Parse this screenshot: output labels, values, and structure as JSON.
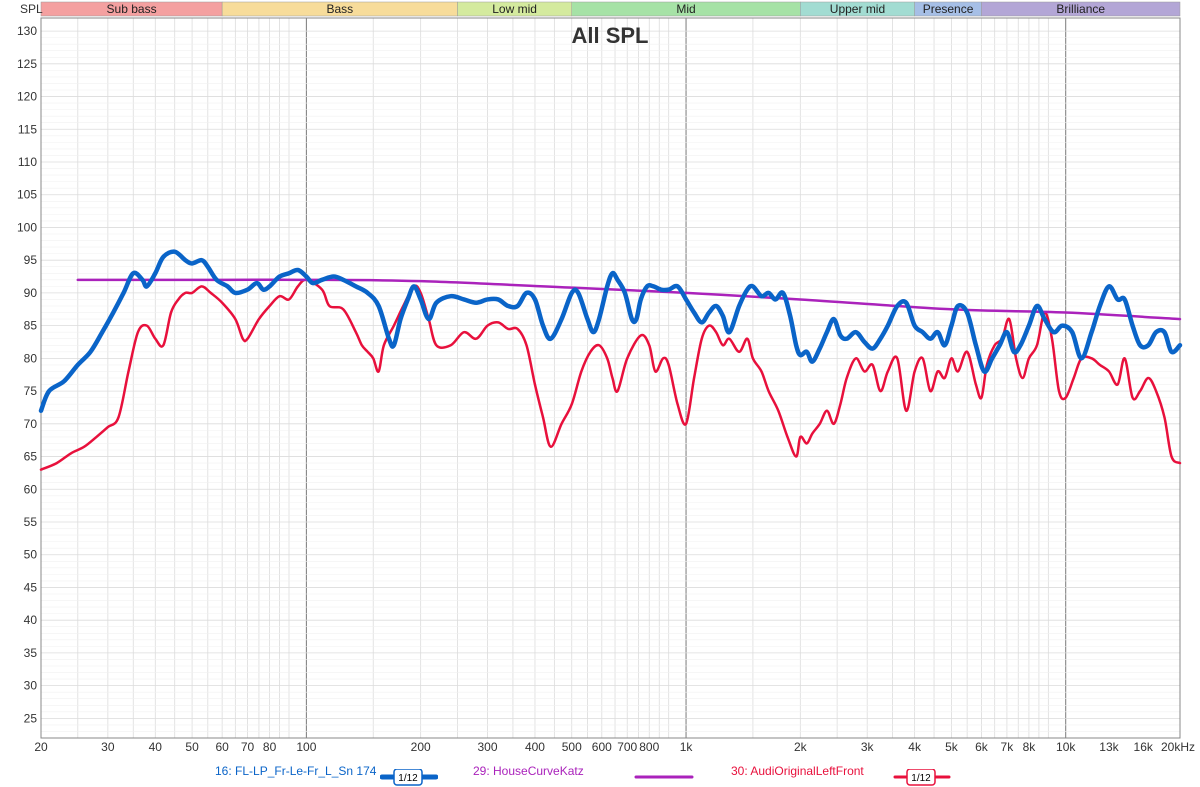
{
  "chart_data": {
    "type": "line",
    "title": "All SPL",
    "ylabel": "SPL",
    "xunit": "kHz",
    "xscale": "log",
    "xlim": [
      20,
      20000
    ],
    "ylim": [
      22,
      132
    ],
    "grid": true,
    "y_ticks": [
      25,
      30,
      35,
      40,
      45,
      50,
      55,
      60,
      65,
      70,
      75,
      80,
      85,
      90,
      95,
      100,
      105,
      110,
      115,
      120,
      125,
      130
    ],
    "x_ticks": [
      {
        "v": 20,
        "label": "20"
      },
      {
        "v": 30,
        "label": "30"
      },
      {
        "v": 40,
        "label": "40"
      },
      {
        "v": 50,
        "label": "50"
      },
      {
        "v": 60,
        "label": "60"
      },
      {
        "v": 70,
        "label": "70"
      },
      {
        "v": 80,
        "label": "80"
      },
      {
        "v": 100,
        "label": "100"
      },
      {
        "v": 200,
        "label": "200"
      },
      {
        "v": 300,
        "label": "300"
      },
      {
        "v": 400,
        "label": "400"
      },
      {
        "v": 500,
        "label": "500"
      },
      {
        "v": 600,
        "label": "600"
      },
      {
        "v": 700,
        "label": "700"
      },
      {
        "v": 800,
        "label": "800"
      },
      {
        "v": 1000,
        "label": "1k"
      },
      {
        "v": 2000,
        "label": "2k"
      },
      {
        "v": 3000,
        "label": "3k"
      },
      {
        "v": 4000,
        "label": "4k"
      },
      {
        "v": 5000,
        "label": "5k"
      },
      {
        "v": 6000,
        "label": "6k"
      },
      {
        "v": 7000,
        "label": "7k"
      },
      {
        "v": 8000,
        "label": "8k"
      },
      {
        "v": 10000,
        "label": "10k"
      },
      {
        "v": 13000,
        "label": "13k"
      },
      {
        "v": 16000,
        "label": "16k"
      },
      {
        "v": 20000,
        "label": "20kHz"
      }
    ],
    "bands": [
      {
        "label": "Sub bass",
        "from": 20,
        "to": 60,
        "color": "#f4a0a0"
      },
      {
        "label": "Bass",
        "from": 60,
        "to": 250,
        "color": "#f7dc9a"
      },
      {
        "label": "Low mid",
        "from": 250,
        "to": 500,
        "color": "#d4ea9e"
      },
      {
        "label": "Mid",
        "from": 500,
        "to": 2000,
        "color": "#a6e2a6"
      },
      {
        "label": "Upper mid",
        "from": 2000,
        "to": 4000,
        "color": "#a2dcd2"
      },
      {
        "label": "Presence",
        "from": 4000,
        "to": 6000,
        "color": "#a6bfe6"
      },
      {
        "label": "Brilliance",
        "from": 6000,
        "to": 20000,
        "color": "#b3a6d6"
      }
    ],
    "series": [
      {
        "name": "16: FL-LP_Fr-Le-Fr_L_Sn 174",
        "smoothing": "1/12",
        "color": "#0a64c8",
        "line_width": 4.5,
        "points": [
          [
            20,
            72
          ],
          [
            21,
            75
          ],
          [
            23,
            76.5
          ],
          [
            25,
            79
          ],
          [
            27,
            81
          ],
          [
            29,
            84
          ],
          [
            31,
            87
          ],
          [
            33,
            90
          ],
          [
            35,
            93
          ],
          [
            37,
            92
          ],
          [
            38,
            91
          ],
          [
            40,
            93
          ],
          [
            42,
            95.5
          ],
          [
            45,
            96.3
          ],
          [
            48,
            95
          ],
          [
            50,
            94.5
          ],
          [
            53,
            95
          ],
          [
            55,
            94
          ],
          [
            58,
            92
          ],
          [
            62,
            91
          ],
          [
            65,
            90
          ],
          [
            70,
            90.5
          ],
          [
            74,
            91.5
          ],
          [
            77,
            90.5
          ],
          [
            80,
            91
          ],
          [
            85,
            92.5
          ],
          [
            90,
            93
          ],
          [
            95,
            93.5
          ],
          [
            100,
            92.5
          ],
          [
            104,
            91.5
          ],
          [
            110,
            92
          ],
          [
            118,
            92.5
          ],
          [
            125,
            92
          ],
          [
            135,
            91
          ],
          [
            145,
            90
          ],
          [
            155,
            88
          ],
          [
            165,
            83
          ],
          [
            170,
            82
          ],
          [
            177,
            86
          ],
          [
            185,
            89
          ],
          [
            192,
            91
          ],
          [
            200,
            89
          ],
          [
            210,
            86
          ],
          [
            220,
            88.5
          ],
          [
            240,
            89.5
          ],
          [
            260,
            89
          ],
          [
            280,
            88.5
          ],
          [
            300,
            89
          ],
          [
            320,
            89
          ],
          [
            340,
            88
          ],
          [
            360,
            88
          ],
          [
            380,
            90
          ],
          [
            400,
            89
          ],
          [
            420,
            85
          ],
          [
            440,
            83
          ],
          [
            470,
            86
          ],
          [
            500,
            90
          ],
          [
            520,
            90
          ],
          [
            550,
            86
          ],
          [
            570,
            84
          ],
          [
            590,
            86
          ],
          [
            620,
            91
          ],
          [
            640,
            93
          ],
          [
            660,
            92
          ],
          [
            690,
            90
          ],
          [
            720,
            86
          ],
          [
            740,
            86
          ],
          [
            760,
            89
          ],
          [
            790,
            91
          ],
          [
            820,
            91
          ],
          [
            860,
            90.5
          ],
          [
            900,
            90.5
          ],
          [
            950,
            91
          ],
          [
            1000,
            89
          ],
          [
            1050,
            87
          ],
          [
            1100,
            85.5
          ],
          [
            1150,
            87
          ],
          [
            1200,
            88
          ],
          [
            1250,
            86.5
          ],
          [
            1300,
            84
          ],
          [
            1380,
            88
          ],
          [
            1450,
            90.5
          ],
          [
            1500,
            91
          ],
          [
            1580,
            89.5
          ],
          [
            1650,
            90
          ],
          [
            1720,
            89
          ],
          [
            1800,
            90
          ],
          [
            1880,
            86.5
          ],
          [
            1950,
            82
          ],
          [
            2000,
            80.5
          ],
          [
            2080,
            81
          ],
          [
            2150,
            79.5
          ],
          [
            2250,
            81.5
          ],
          [
            2350,
            84
          ],
          [
            2450,
            86
          ],
          [
            2550,
            83.5
          ],
          [
            2650,
            83
          ],
          [
            2800,
            84
          ],
          [
            2950,
            82.5
          ],
          [
            3100,
            81.5
          ],
          [
            3250,
            83
          ],
          [
            3400,
            85
          ],
          [
            3600,
            88
          ],
          [
            3800,
            88.5
          ],
          [
            4000,
            85
          ],
          [
            4200,
            84
          ],
          [
            4400,
            83
          ],
          [
            4600,
            84
          ],
          [
            4800,
            82
          ],
          [
            5000,
            85
          ],
          [
            5200,
            88
          ],
          [
            5500,
            87
          ],
          [
            5800,
            82
          ],
          [
            6100,
            78
          ],
          [
            6400,
            80
          ],
          [
            6700,
            82
          ],
          [
            7000,
            84
          ],
          [
            7300,
            81
          ],
          [
            7600,
            82
          ],
          [
            8000,
            85
          ],
          [
            8400,
            88
          ],
          [
            8800,
            86
          ],
          [
            9300,
            84
          ],
          [
            9800,
            85
          ],
          [
            10400,
            84
          ],
          [
            11000,
            80
          ],
          [
            11700,
            84
          ],
          [
            12300,
            88
          ],
          [
            13000,
            91
          ],
          [
            13700,
            89
          ],
          [
            14300,
            89
          ],
          [
            15000,
            85
          ],
          [
            15700,
            82
          ],
          [
            16500,
            82
          ],
          [
            17300,
            84
          ],
          [
            18200,
            84
          ],
          [
            19000,
            81
          ],
          [
            20000,
            82
          ]
        ]
      },
      {
        "name": "29: HouseCurveKatz",
        "color": "#aa22bb",
        "line_width": 2.5,
        "points": [
          [
            25,
            92
          ],
          [
            60,
            92
          ],
          [
            100,
            92
          ],
          [
            200,
            91.8
          ],
          [
            500,
            90.8
          ],
          [
            1000,
            90
          ],
          [
            2000,
            89
          ],
          [
            5000,
            87.5
          ],
          [
            10000,
            87
          ],
          [
            20000,
            86
          ]
        ]
      },
      {
        "name": "30: AudiOriginalLeftFront",
        "smoothing": "1/12",
        "color": "#e8103c",
        "line_width": 2.5,
        "points": [
          [
            20,
            63
          ],
          [
            22,
            64
          ],
          [
            24,
            65.5
          ],
          [
            26,
            66.5
          ],
          [
            28,
            68
          ],
          [
            30,
            69.5
          ],
          [
            32,
            71
          ],
          [
            34,
            78
          ],
          [
            36,
            84
          ],
          [
            38,
            85
          ],
          [
            40,
            83
          ],
          [
            42,
            82
          ],
          [
            44,
            87
          ],
          [
            46,
            89
          ],
          [
            48,
            90
          ],
          [
            50,
            90
          ],
          [
            53,
            91
          ],
          [
            56,
            90
          ],
          [
            60,
            88.5
          ],
          [
            65,
            86
          ],
          [
            68,
            83
          ],
          [
            70,
            83
          ],
          [
            75,
            86
          ],
          [
            80,
            88
          ],
          [
            85,
            89.5
          ],
          [
            90,
            89
          ],
          [
            95,
            91
          ],
          [
            100,
            92
          ],
          [
            110,
            90.5
          ],
          [
            115,
            88
          ],
          [
            125,
            87.5
          ],
          [
            135,
            84
          ],
          [
            140,
            82
          ],
          [
            145,
            81
          ],
          [
            150,
            80
          ],
          [
            155,
            78
          ],
          [
            160,
            82
          ],
          [
            170,
            85
          ],
          [
            180,
            88
          ],
          [
            192,
            91
          ],
          [
            200,
            90
          ],
          [
            210,
            86
          ],
          [
            220,
            82
          ],
          [
            240,
            82
          ],
          [
            260,
            84
          ],
          [
            280,
            83
          ],
          [
            300,
            85
          ],
          [
            320,
            85.5
          ],
          [
            340,
            84.5
          ],
          [
            360,
            84.5
          ],
          [
            380,
            82
          ],
          [
            400,
            76
          ],
          [
            420,
            71
          ],
          [
            440,
            66.5
          ],
          [
            470,
            70
          ],
          [
            500,
            73
          ],
          [
            530,
            78
          ],
          [
            560,
            81
          ],
          [
            590,
            82
          ],
          [
            620,
            80
          ],
          [
            640,
            77
          ],
          [
            660,
            75
          ],
          [
            700,
            80
          ],
          [
            760,
            83.5
          ],
          [
            800,
            82
          ],
          [
            830,
            78
          ],
          [
            870,
            80
          ],
          [
            900,
            79
          ],
          [
            950,
            73
          ],
          [
            1000,
            70
          ],
          [
            1050,
            77
          ],
          [
            1100,
            83
          ],
          [
            1150,
            85
          ],
          [
            1200,
            84
          ],
          [
            1250,
            82
          ],
          [
            1300,
            83
          ],
          [
            1380,
            81
          ],
          [
            1450,
            83
          ],
          [
            1500,
            80
          ],
          [
            1580,
            78
          ],
          [
            1650,
            75
          ],
          [
            1750,
            72
          ],
          [
            1850,
            68
          ],
          [
            1950,
            65
          ],
          [
            2000,
            68
          ],
          [
            2080,
            67
          ],
          [
            2150,
            68.5
          ],
          [
            2250,
            70
          ],
          [
            2350,
            72
          ],
          [
            2450,
            70
          ],
          [
            2550,
            73
          ],
          [
            2650,
            77
          ],
          [
            2800,
            80
          ],
          [
            2950,
            78
          ],
          [
            3100,
            79
          ],
          [
            3250,
            75
          ],
          [
            3400,
            78
          ],
          [
            3600,
            80
          ],
          [
            3800,
            72
          ],
          [
            4000,
            78
          ],
          [
            4200,
            80
          ],
          [
            4400,
            75
          ],
          [
            4600,
            78
          ],
          [
            4800,
            77
          ],
          [
            5000,
            80
          ],
          [
            5200,
            78
          ],
          [
            5500,
            81
          ],
          [
            5800,
            76
          ],
          [
            6000,
            74
          ],
          [
            6200,
            79
          ],
          [
            6500,
            82
          ],
          [
            6800,
            83
          ],
          [
            7100,
            86
          ],
          [
            7400,
            80
          ],
          [
            7700,
            77
          ],
          [
            8000,
            80
          ],
          [
            8400,
            82
          ],
          [
            8800,
            87
          ],
          [
            9200,
            83
          ],
          [
            9600,
            75
          ],
          [
            10000,
            74
          ],
          [
            10500,
            77
          ],
          [
            11000,
            80
          ],
          [
            11700,
            80
          ],
          [
            12300,
            79
          ],
          [
            13000,
            78
          ],
          [
            13700,
            76
          ],
          [
            14300,
            80
          ],
          [
            15000,
            74
          ],
          [
            15700,
            75
          ],
          [
            16500,
            77
          ],
          [
            17300,
            75
          ],
          [
            18200,
            71
          ],
          [
            19000,
            65
          ],
          [
            20000,
            64
          ]
        ]
      }
    ]
  },
  "legend": {
    "series_1_label": "16: FL-LP_Fr-Le-Fr_L_Sn 174",
    "series_2_label": "29: HouseCurveKatz",
    "series_3_label": "30: AudiOriginalLeftFront",
    "smoothing_label_1": "1/12",
    "smoothing_label_3": "1/12"
  }
}
